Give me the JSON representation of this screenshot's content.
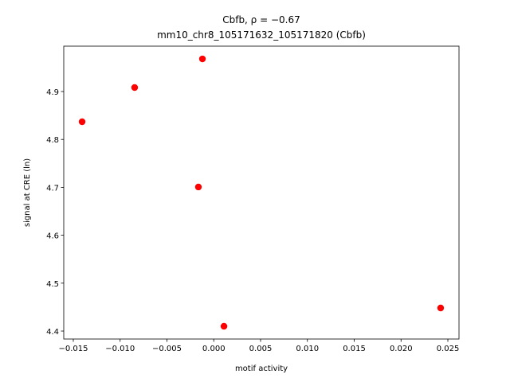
{
  "chart_data": {
    "type": "scatter",
    "title": "Cbfb, ρ = −0.67",
    "subtitle": "mm10_chr8_105171632_105171820 (Cbfb)",
    "xlabel": "motif activity",
    "ylabel": "signal at CRE (ln)",
    "x": [
      -0.01406,
      -0.00845,
      -0.00121,
      -0.00164,
      0.00109,
      0.02423
    ],
    "values": [
      4.8369,
      4.9083,
      4.9681,
      4.7007,
      4.41,
      4.4482
    ],
    "color": "#ff0000",
    "xlim": [
      -0.01602,
      0.02619
    ],
    "ylim": [
      4.3834,
      4.9947
    ],
    "xticks": [
      {
        "value": -0.015,
        "label": "−0.015"
      },
      {
        "value": -0.01,
        "label": "−0.010"
      },
      {
        "value": -0.005,
        "label": "−0.005"
      },
      {
        "value": 0,
        "label": "0.000"
      },
      {
        "value": 0.005,
        "label": "0.005"
      },
      {
        "value": 0.01,
        "label": "0.010"
      },
      {
        "value": 0.015,
        "label": "0.015"
      },
      {
        "value": 0.02,
        "label": "0.020"
      },
      {
        "value": 0.025,
        "label": "0.025"
      }
    ],
    "yticks": [
      4.4,
      4.5,
      4.6,
      4.7,
      4.8,
      4.9
    ],
    "grid": false
  }
}
